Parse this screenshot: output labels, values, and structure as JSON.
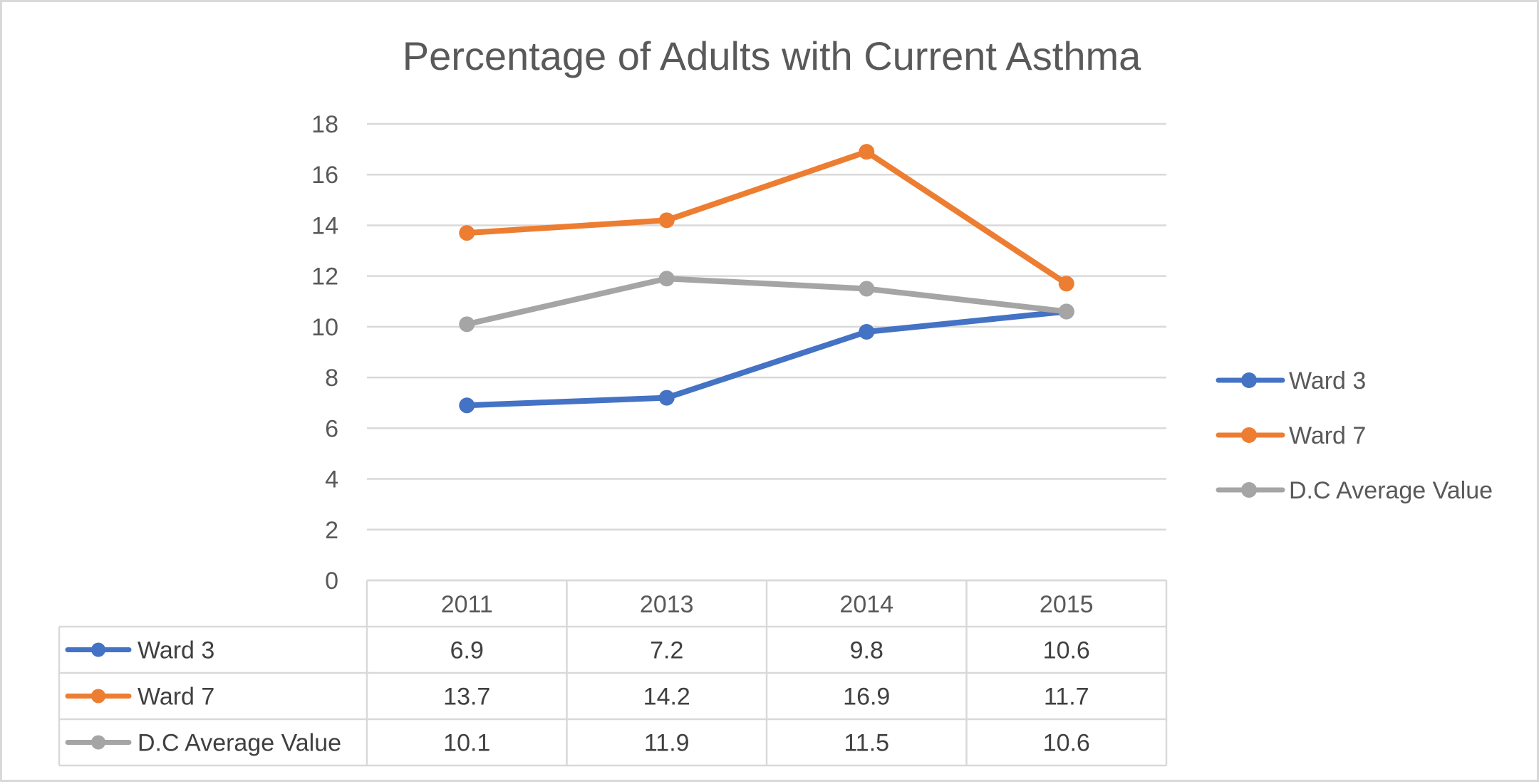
{
  "chart_data": {
    "type": "line",
    "title": "Percentage of Adults with Current Asthma",
    "xlabel": "",
    "ylabel": "",
    "categories": [
      "2011",
      "2013",
      "2014",
      "2015"
    ],
    "ylim": [
      0,
      18
    ],
    "yticks": [
      0,
      2,
      4,
      6,
      8,
      10,
      12,
      14,
      16,
      18
    ],
    "grid": true,
    "legend_position": "right",
    "data_table": true,
    "series": [
      {
        "name": "Ward 3",
        "color": "#4472C4",
        "values": [
          6.9,
          7.2,
          9.8,
          10.6
        ]
      },
      {
        "name": "Ward 7",
        "color": "#ED7D31",
        "values": [
          13.7,
          14.2,
          16.9,
          11.7
        ]
      },
      {
        "name": "D.C Average Value",
        "color": "#A5A5A5",
        "values": [
          10.1,
          11.9,
          11.5,
          10.6
        ]
      }
    ]
  }
}
